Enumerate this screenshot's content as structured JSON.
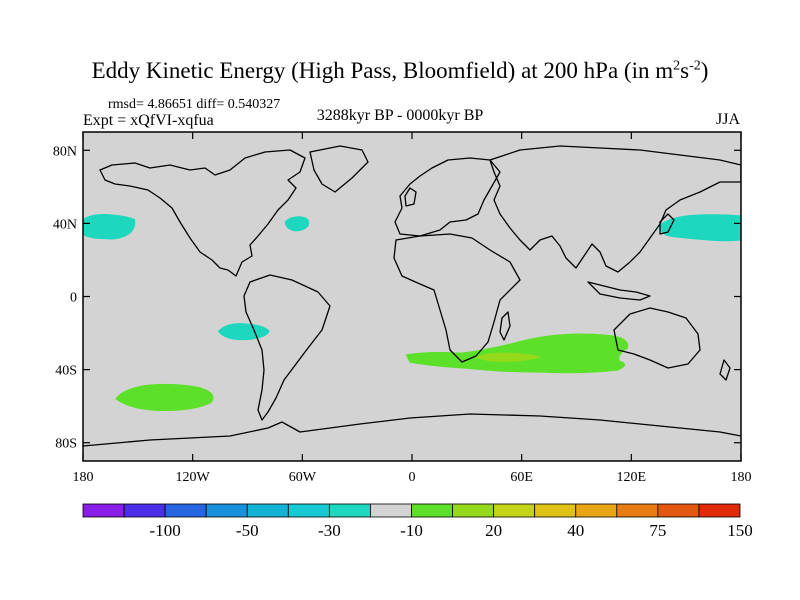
{
  "title": {
    "main": "Eddy Kinetic Energy (High Pass, Bloomfield) at 200 hPa (in m",
    "exp1": "2",
    "mid": "s",
    "exp2": "-2",
    "end": ")"
  },
  "stats": "rmsd= 4.86651  diff= 0.540327",
  "experiment": "Expt = xQfVI-xqfua",
  "period": "3288kyr BP - 0000kyr BP",
  "season": "JJA",
  "map": {
    "lat_labels": [
      "80N",
      "40N",
      "0",
      "40S",
      "80S"
    ],
    "lat_values": [
      80,
      40,
      0,
      -40,
      -80
    ],
    "lon_labels": [
      "180",
      "120W",
      "60W",
      "0",
      "60E",
      "120E",
      "180"
    ],
    "lon_values": [
      -180,
      -120,
      -60,
      0,
      60,
      120,
      180
    ],
    "land_color": "#d3d3d3",
    "anomalies": [
      {
        "name": "north-pacific-east",
        "lon": -167,
        "lat": 38,
        "class": "-10"
      },
      {
        "name": "west-atlantic",
        "lon": -63,
        "lat": 40,
        "class": "-10"
      },
      {
        "name": "north-pacific-west",
        "lon": 155,
        "lat": 37,
        "class": "-10"
      },
      {
        "name": "south-pacific-subtropic",
        "lon": -92,
        "lat": -19,
        "class": "-10"
      },
      {
        "name": "south-pacific",
        "lon": -135,
        "lat": -55,
        "class": "20"
      },
      {
        "name": "southern-indian-ocean",
        "lon": 60,
        "lat": -34,
        "class": "20"
      },
      {
        "name": "southern-indian-core",
        "lon": 50,
        "lat": -33,
        "class": "30"
      }
    ]
  },
  "colorbar": {
    "colors": [
      "#8a1de6",
      "#4a2ee8",
      "#2666e0",
      "#1891dc",
      "#14b3d6",
      "#17c9d3",
      "#1dd8be",
      "#d3d3d3",
      "#5de02a",
      "#95d91b",
      "#c4d417",
      "#dfc214",
      "#e8a515",
      "#e67c12",
      "#e2580f",
      "#e02a0a"
    ],
    "labels": [
      "-100",
      "-50",
      "-30",
      "-10",
      "20",
      "40",
      "75",
      "150"
    ]
  }
}
